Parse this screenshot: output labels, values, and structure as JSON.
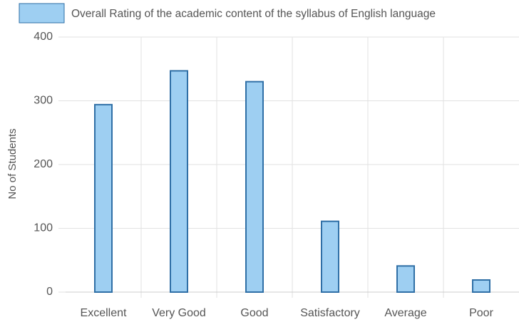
{
  "chart_data": {
    "type": "bar",
    "y_label": "No of Students",
    "categories": [
      "Excellent",
      "Very Good",
      "Good",
      "Satisfactory",
      "Average",
      "Poor"
    ],
    "series": [
      {
        "name": "Overall Rating of the academic content of the syllabus of English language",
        "color": "#9ecff2",
        "border_color": "#2f6fa6",
        "values": [
          294,
          347,
          330,
          111,
          41,
          19
        ]
      }
    ],
    "ylim": [
      0,
      400
    ],
    "yticks": [
      0,
      100,
      200,
      300,
      400
    ],
    "grid": true,
    "legend": "top"
  }
}
